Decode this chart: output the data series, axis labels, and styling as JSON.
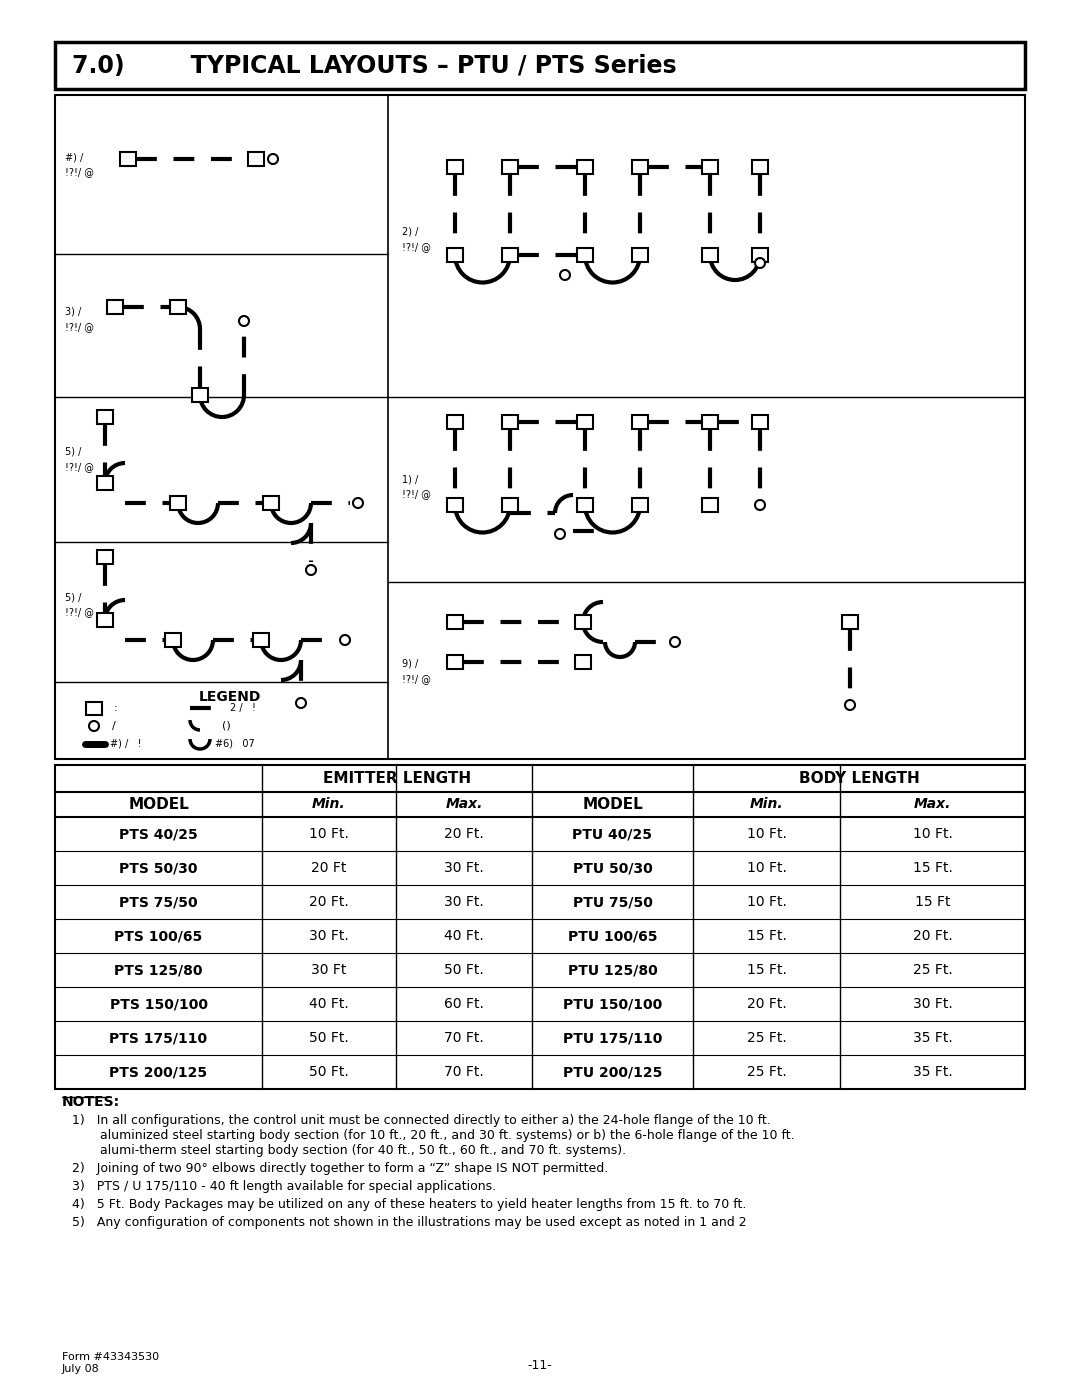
{
  "title": "7.0)        TYPICAL LAYOUTS – PTU / PTS Series",
  "table_header_emitter": "EMITTER LENGTH",
  "table_header_body": "BODY LENGTH",
  "col_model": "MODEL",
  "col_min": "Min.",
  "col_max": "Max.",
  "table_rows": [
    [
      "PTS 40/25",
      "10 Ft.",
      "20 Ft.",
      "PTU 40/25",
      "10 Ft.",
      "10 Ft."
    ],
    [
      "PTS 50/30",
      "20 Ft",
      "30 Ft.",
      "PTU 50/30",
      "10 Ft.",
      "15 Ft."
    ],
    [
      "PTS 75/50",
      "20 Ft.",
      "30 Ft.",
      "PTU 75/50",
      "10 Ft.",
      "15 Ft"
    ],
    [
      "PTS 100/65",
      "30 Ft.",
      "40 Ft.",
      "PTU 100/65",
      "15 Ft.",
      "20 Ft."
    ],
    [
      "PTS 125/80",
      "30 Ft",
      "50 Ft.",
      "PTU 125/80",
      "15 Ft.",
      "25 Ft."
    ],
    [
      "PTS 150/100",
      "40 Ft.",
      "60 Ft.",
      "PTU 150/100",
      "20 Ft.",
      "30 Ft."
    ],
    [
      "PTS 175/110",
      "50 Ft.",
      "70 Ft.",
      "PTU 175/110",
      "25 Ft.",
      "35 Ft."
    ],
    [
      "PTS 200/125",
      "50 Ft.",
      "70 Ft.",
      "PTU 200/125",
      "25 Ft.",
      "35 Ft."
    ]
  ],
  "notes_title": "NOTES:",
  "notes": [
    "1)   In all configurations, the control unit must be connected directly to either a) the 24-hole flange of the 10 ft.\n       aluminized steel starting body section (for 10 ft., 20 ft., and 30 ft. systems) or b) the 6-hole flange of the 10 ft.\n       alumi-therm steel starting body section (for 40 ft., 50 ft., 60 ft., and 70 ft. systems).",
    "2)   Joining of two 90° elbows directly together to form a “Z” shape IS NOT permitted.",
    "3)   PTS / U 175/110 - 40 ft length available for special applications.",
    "4)   5 Ft. Body Packages may be utilized on any of these heaters to yield heater lengths from 15 ft. to 70 ft.",
    "5)   Any configuration of components not shown in the illustrations may be used except as noted in 1 and 2"
  ],
  "footer_left": "Form #43343530\nJuly 08",
  "footer_center": "-11-",
  "bg_color": "#ffffff"
}
